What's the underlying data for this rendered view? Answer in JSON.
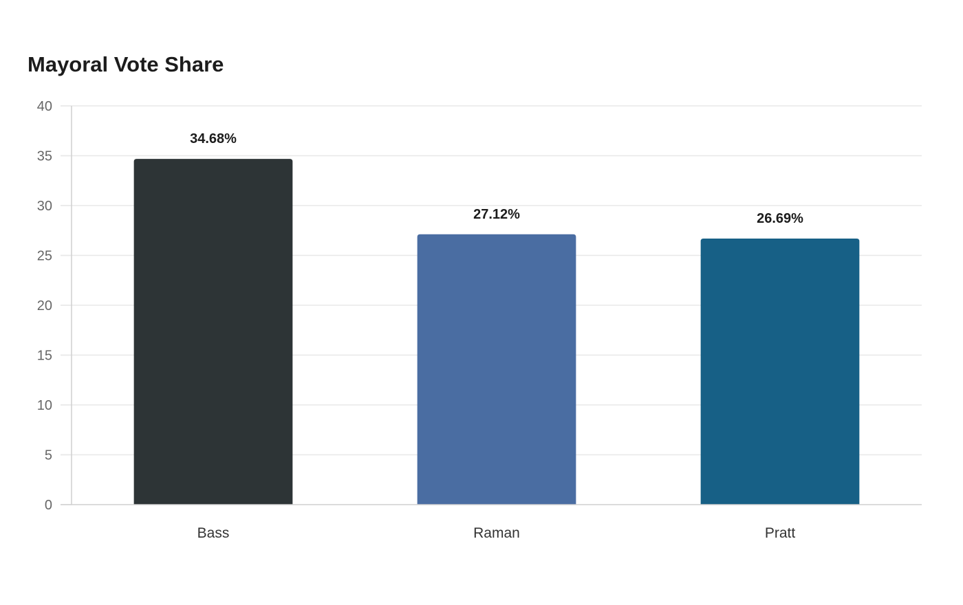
{
  "chart_data": {
    "type": "bar",
    "title": "Mayoral Vote Share",
    "xlabel": "",
    "ylabel": "",
    "categories": [
      "Bass",
      "Raman",
      "Pratt"
    ],
    "values": [
      34.68,
      27.12,
      26.69
    ],
    "data_labels": [
      "34.68%",
      "27.12%",
      "26.69%"
    ],
    "colors": [
      "#2d3436",
      "#4a6da2",
      "#176086"
    ],
    "ylim": [
      0,
      40
    ],
    "yticks": [
      0,
      5,
      10,
      15,
      20,
      25,
      30,
      35,
      40
    ],
    "grid": true,
    "legend": "none"
  }
}
